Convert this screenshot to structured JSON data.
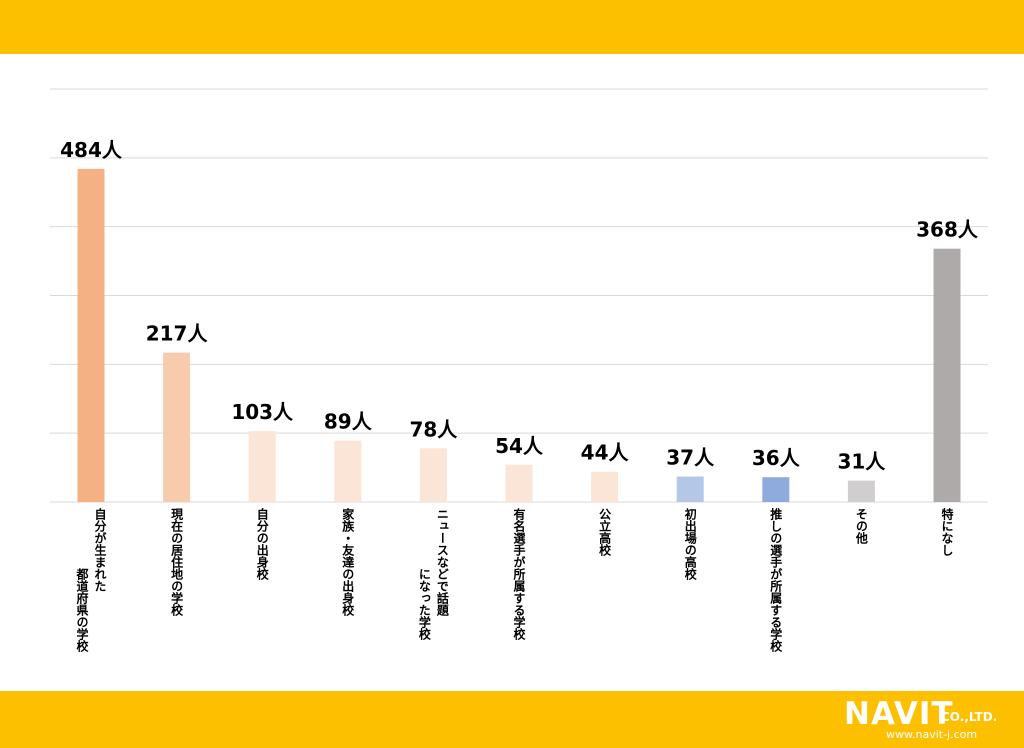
{
  "chart_data": {
    "type": "bar",
    "title": "",
    "xlabel": "",
    "ylabel": "",
    "ylim": [
      0,
      600
    ],
    "gridlines": [
      0,
      100,
      200,
      300,
      400,
      500,
      600
    ],
    "unit": "人",
    "categories": [
      [
        "自分が生まれた",
        "都道府県の学校"
      ],
      [
        "現在の居住地の学校"
      ],
      [
        "自分の出身校"
      ],
      [
        "家族・友達の出身校"
      ],
      [
        "ニュースなどで話題",
        "になった学校"
      ],
      [
        "有名選手が所属する学校"
      ],
      [
        "公立高校"
      ],
      [
        "初出場の高校"
      ],
      [
        "推しの選手が所属する学校"
      ],
      [
        "その他"
      ],
      [
        "特になし"
      ]
    ],
    "values": [
      484,
      217,
      103,
      89,
      78,
      54,
      44,
      37,
      36,
      31,
      368
    ],
    "data_labels": [
      "484人",
      "217人",
      "103人",
      "89人",
      "78人",
      "54人",
      "44人",
      "37人",
      "36人",
      "31人",
      "368人"
    ],
    "colors": [
      "#f4b183",
      "#f8cbad",
      "#fbe5d6",
      "#fbe5d6",
      "#fbe5d6",
      "#fbe5d6",
      "#fbe5d6",
      "#b4c7e7",
      "#8faadc",
      "#d0cece",
      "#aeaaaa"
    ]
  },
  "logo": {
    "brand": "NAVIT",
    "suffix": "CO.,LTD.",
    "url": "www.navit-j.com"
  }
}
